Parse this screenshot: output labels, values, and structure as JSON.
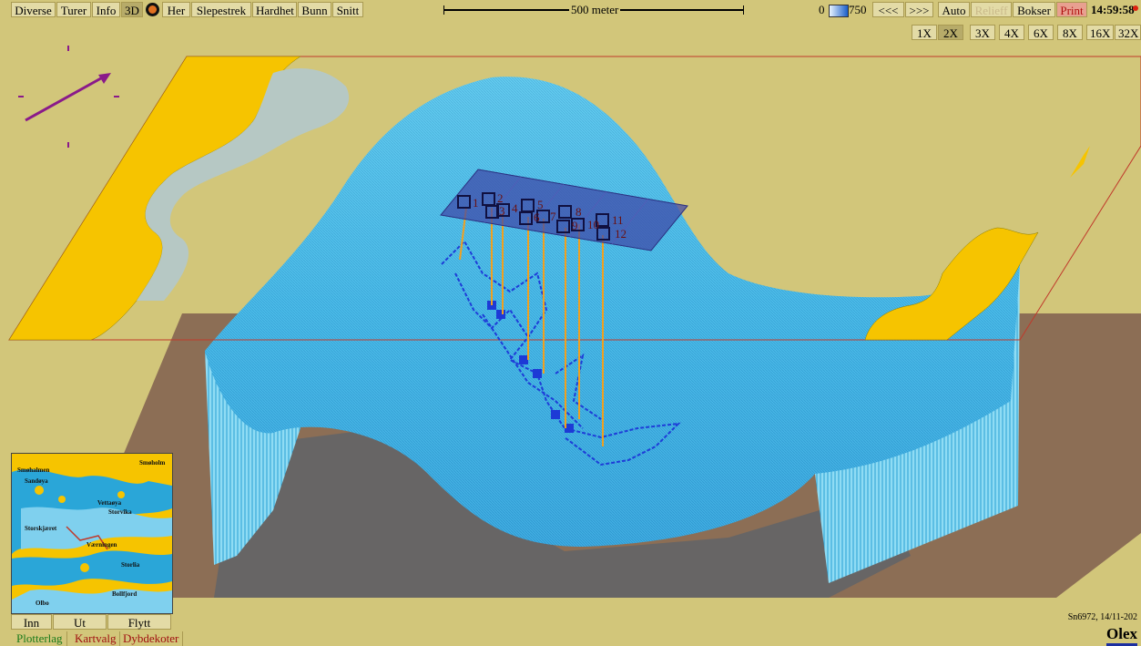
{
  "toolbar": {
    "items": [
      "Diverse",
      "Turer",
      "Info",
      "3D",
      "Her",
      "Slepestrek",
      "Hardhet",
      "Bunn",
      "Snitt"
    ],
    "scale_label": "500 meter",
    "depth_min": "0",
    "depth_max": "750",
    "prev": "<<<",
    "next": ">>>",
    "auto": "Auto",
    "relief": "Relieff",
    "bokser": "Bokser",
    "print": "Print",
    "time": "14:59:58"
  },
  "zoom": {
    "levels": [
      "1X",
      "2X",
      "3X",
      "4X",
      "6X",
      "8X",
      "16X",
      "32X"
    ],
    "selected": "2X"
  },
  "markers": [
    "1",
    "2",
    "3",
    "4",
    "5",
    "6",
    "7",
    "8",
    "9",
    "10",
    "11",
    "12"
  ],
  "minimap": {
    "places": [
      "Smøholm",
      "Smøhalmen",
      "Sandøya",
      "Vettaøya",
      "Storvika",
      "Storskjæret",
      "Værningen",
      "Bollfjord",
      "Olbo",
      "Storlia"
    ],
    "buttons": [
      "Inn",
      "Ut",
      "Flytt"
    ]
  },
  "bottom_tabs": [
    "Plotterlag",
    "Kartvalg",
    "Dybdekoter"
  ],
  "status": "Sn6972, 14/11-202",
  "logo": "Olex",
  "colors": {
    "land": "#f6c400",
    "background": "#d2c67a",
    "sea": "#4ebfe8",
    "floor": "#8c6e55"
  }
}
